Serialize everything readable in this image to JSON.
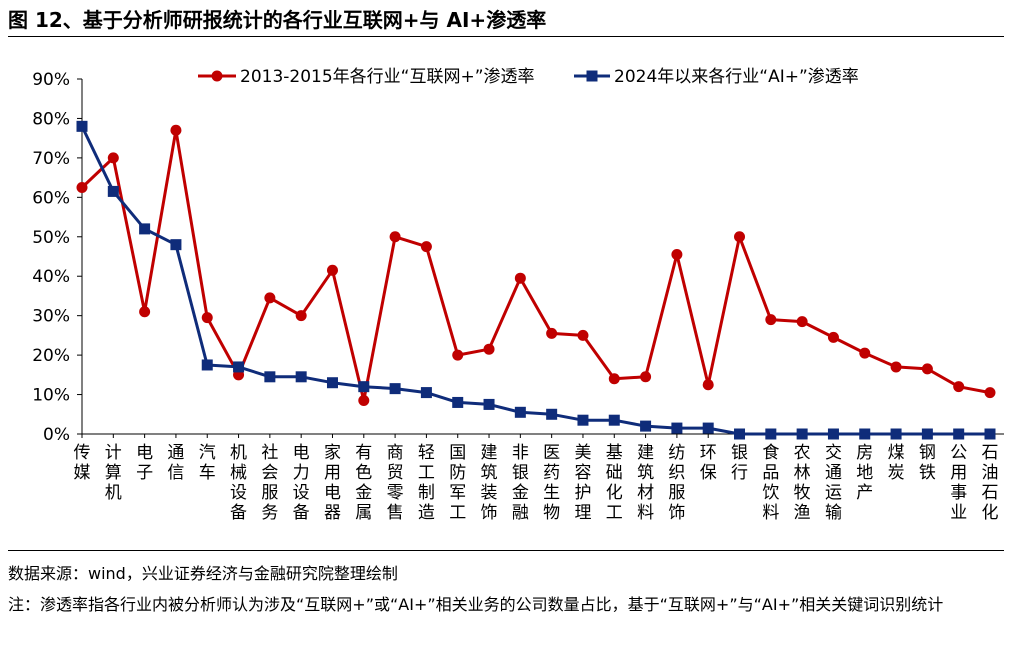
{
  "title": "图 12、基于分析师研报统计的各行业互联网+与 AI+渗透率",
  "source_text": "数据来源：wind，兴业证券经济与金融研究院整理绘制",
  "note_text": "注：渗透率指各行业内被分析师认为涉及“互联网+”或“AI+”相关业务的公司数量占比，基于“互联网+”与“AI+”相关关键词识别统计",
  "colors": {
    "series1": "#C00000",
    "series2": "#0F2C7A"
  },
  "chart_data": {
    "type": "line",
    "title": "",
    "xlabel": "",
    "ylabel": "",
    "ylim": [
      0,
      90
    ],
    "yticks": [
      0,
      10,
      20,
      30,
      40,
      50,
      60,
      70,
      80,
      90
    ],
    "ytick_labels": [
      "0%",
      "10%",
      "20%",
      "30%",
      "40%",
      "50%",
      "60%",
      "70%",
      "80%",
      "90%"
    ],
    "legend_position": "top",
    "grid": false,
    "categories": [
      "传媒",
      "计算机",
      "电子",
      "通信",
      "汽车",
      "机械设备",
      "社会服务",
      "电力设备",
      "家用电器",
      "有色金属",
      "商贸零售",
      "轻工制造",
      "国防军工",
      "建筑装饰",
      "非银金融",
      "医药生物",
      "美容护理",
      "基础化工",
      "建筑材料",
      "纺织服饰",
      "环保",
      "银行",
      "食品饮料",
      "农林牧渔",
      "交通运输",
      "房地产",
      "煤炭",
      "钢铁",
      "公用事业",
      "石油石化"
    ],
    "series": [
      {
        "name": "2013-2015年各行业“互联网+”渗透率",
        "values": [
          62.5,
          70,
          31,
          77,
          29.5,
          15,
          34.5,
          30,
          41.5,
          8.5,
          50,
          47.5,
          20,
          21.5,
          39.5,
          25.5,
          25,
          14,
          14.5,
          45.5,
          12.5,
          50,
          29,
          28.5,
          24.5,
          20.5,
          17,
          16.5,
          12,
          10.5
        ]
      },
      {
        "name": "2024年以来各行业“AI+”渗透率",
        "values": [
          78,
          61.5,
          52,
          48,
          17.5,
          17,
          14.5,
          14.5,
          13,
          12,
          11.5,
          10.5,
          8,
          7.5,
          5.5,
          5,
          3.5,
          3.5,
          2,
          1.5,
          1.5,
          0,
          0,
          0,
          0,
          0,
          0,
          0,
          0,
          0
        ]
      }
    ]
  }
}
